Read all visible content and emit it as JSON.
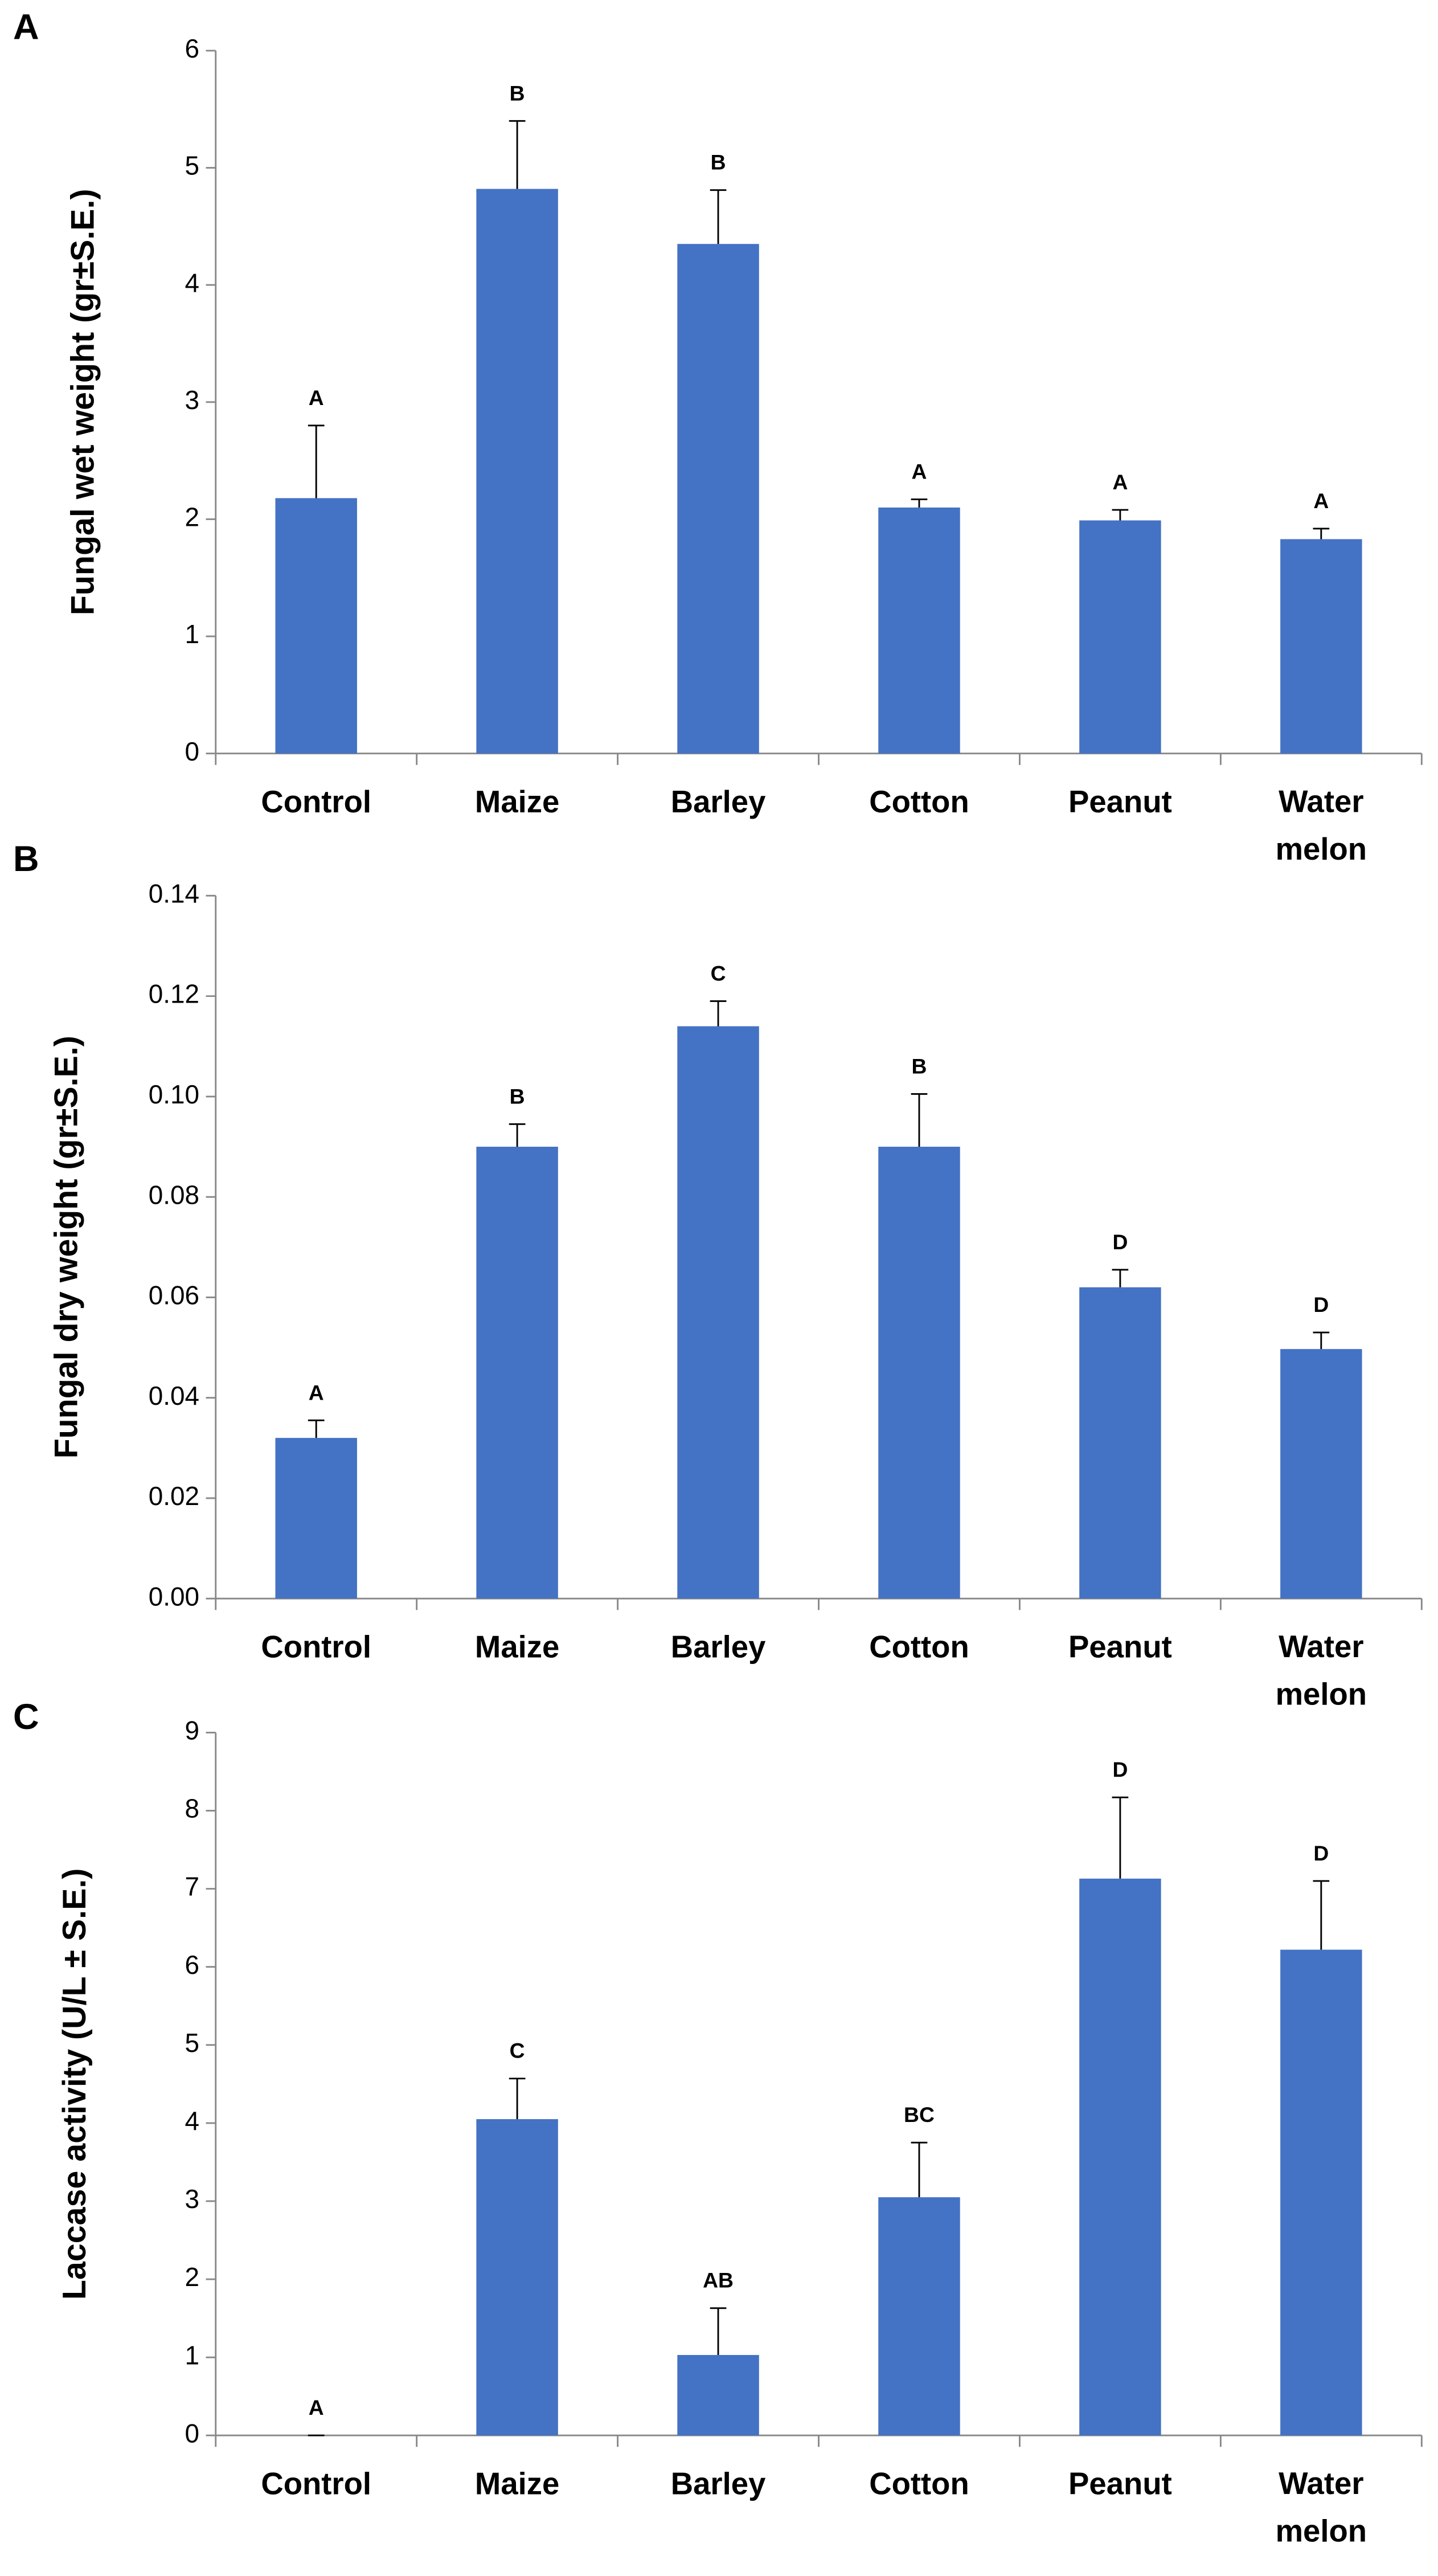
{
  "chart_data": [
    {
      "type": "bar",
      "panel": "A",
      "y_label": "Fungal wet weight (gr±S.E.)",
      "categories": [
        "Control",
        "Maize",
        "Barley",
        "Cotton",
        "Peanut",
        "Water melon"
      ],
      "values": [
        2.18,
        4.82,
        4.35,
        2.1,
        1.99,
        1.83
      ],
      "errors": [
        0.62,
        0.58,
        0.46,
        0.07,
        0.09,
        0.09
      ],
      "labels": [
        "A",
        "B",
        "B",
        "A",
        "A",
        "A"
      ],
      "color": "#4472c4",
      "ylim": [
        0,
        6
      ],
      "yticks": [
        0,
        1,
        2,
        3,
        4,
        5,
        6
      ]
    },
    {
      "type": "bar",
      "panel": "B",
      "y_label": "Fungal dry weight (gr±S.E.)",
      "categories": [
        "Control",
        "Maize",
        "Barley",
        "Cotton",
        "Peanut",
        "Water melon"
      ],
      "values": [
        0.032,
        0.09,
        0.114,
        0.09,
        0.062,
        0.0497
      ],
      "errors": [
        0.0035,
        0.0045,
        0.005,
        0.0105,
        0.0035,
        0.0033
      ],
      "labels": [
        "A",
        "B",
        "C",
        "B",
        "D",
        "D"
      ],
      "color": "#4472c4",
      "ylim": [
        0,
        0.14
      ],
      "yticks": [
        {
          "value": 0,
          "label": "0.00"
        },
        {
          "value": 0.02,
          "label": "0.02"
        },
        {
          "value": 0.04,
          "label": "0.04"
        },
        {
          "value": 0.06,
          "label": "0.06"
        },
        {
          "value": 0.08,
          "label": "0.08"
        },
        {
          "value": 0.1,
          "label": "0.10"
        },
        {
          "value": 0.12,
          "label": "0.12"
        },
        {
          "value": 0.14,
          "label": "0.14"
        }
      ]
    },
    {
      "type": "bar",
      "panel": "C",
      "y_label": "Laccase activity (U/L ± S.E.)",
      "categories": [
        "Control",
        "Maize",
        "Barley",
        "Cotton",
        "Peanut",
        "Water melon"
      ],
      "values": [
        0,
        4.05,
        1.03,
        3.05,
        7.13,
        6.22
      ],
      "errors": [
        0,
        0.52,
        0.6,
        0.7,
        1.04,
        0.88
      ],
      "labels": [
        "A",
        "C",
        "AB",
        "BC",
        "D",
        "D"
      ],
      "color": "#4472c4",
      "ylim": [
        0,
        9
      ],
      "yticks": [
        0,
        1,
        2,
        3,
        4,
        5,
        6,
        7,
        8,
        9
      ]
    }
  ]
}
